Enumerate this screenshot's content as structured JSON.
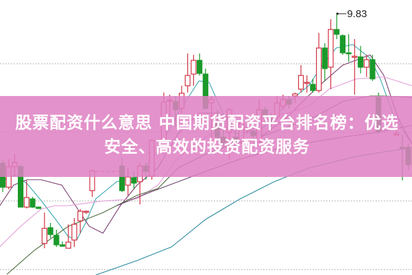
{
  "title": "股票配资什么意思 中国期货配资平台排名榜：优选安全、高效的投资配资服务",
  "colors": {
    "up": "#d0303f",
    "down": "#1a9a2a",
    "banner": "#de82c2",
    "grid": "#999999"
  },
  "chart_data": {
    "type": "candlestick",
    "grid": "horizontal dotted",
    "high_label": "9.83",
    "candles_fields": [
      "day",
      "open",
      "high",
      "low",
      "close"
    ],
    "candles": [
      [
        0,
        8.74,
        8.77,
        8.53,
        8.565
      ],
      [
        1,
        8.565,
        8.77,
        8.55,
        8.715
      ],
      [
        2,
        8.715,
        8.805,
        8.64,
        8.745
      ],
      [
        3,
        8.715,
        8.73,
        8.42,
        8.42
      ],
      [
        4,
        8.42,
        8.615,
        8.41,
        8.49
      ],
      [
        5,
        8.48,
        8.495,
        8.415,
        8.42
      ],
      [
        6,
        8.42,
        8.425,
        8.405,
        8.41
      ],
      [
        7,
        8.155,
        8.38,
        8.12,
        8.265
      ],
      [
        8,
        8.27,
        8.305,
        8.195,
        8.22
      ],
      [
        9,
        8.215,
        8.255,
        8.13,
        8.145
      ],
      [
        10,
        8.145,
        8.17,
        8.13,
        8.135
      ],
      [
        11,
        8.12,
        8.295,
        8.12,
        8.165
      ],
      [
        12,
        8.18,
        8.34,
        8.13,
        8.295
      ],
      [
        13,
        8.32,
        8.405,
        8.23,
        8.39
      ],
      [
        14,
        8.385,
        8.395,
        8.37,
        8.39
      ],
      [
        15,
        8.54,
        8.695,
        8.495,
        8.685
      ],
      [
        20,
        8.72,
        8.78,
        8.53,
        8.54
      ],
      [
        21,
        8.58,
        8.705,
        8.505,
        8.64
      ],
      [
        22,
        8.635,
        8.68,
        8.555,
        8.595
      ],
      [
        23,
        8.605,
        8.745,
        8.44,
        8.72
      ],
      [
        24,
        8.72,
        8.74,
        8.62,
        8.68
      ],
      [
        25,
        8.645,
        8.915,
        8.62,
        8.905
      ],
      [
        27,
        8.88,
        9.255,
        8.855,
        9.185
      ],
      [
        28,
        9.195,
        9.24,
        9.08,
        9.2
      ],
      [
        29,
        9.19,
        9.23,
        9.005,
        9.13
      ],
      [
        30,
        9.14,
        9.305,
        9.105,
        9.25
      ],
      [
        31,
        9.305,
        9.54,
        9.255,
        9.38
      ],
      [
        32,
        9.39,
        9.53,
        9.305,
        9.49
      ],
      [
        33,
        9.49,
        9.54,
        9.38,
        9.395
      ],
      [
        34,
        9.39,
        9.43,
        9.13,
        9.14
      ],
      [
        35,
        9.18,
        9.23,
        8.845,
        9.205
      ],
      [
        36,
        9.04,
        9.13,
        8.905,
        8.93
      ],
      [
        37,
        8.93,
        8.98,
        8.855,
        8.89
      ],
      [
        38,
        8.965,
        9.145,
        8.765,
        9.13
      ],
      [
        39,
        8.93,
        8.98,
        8.855,
        8.89
      ],
      [
        40,
        8.895,
        9.055,
        8.88,
        9.03
      ],
      [
        41,
        8.98,
        9.03,
        8.955,
        8.99
      ],
      [
        42,
        8.97,
        9.005,
        8.905,
        8.94
      ],
      [
        43,
        8.895,
        9.205,
        8.895,
        9.13
      ],
      [
        44,
        9.13,
        9.155,
        9.03,
        9.09
      ],
      [
        45,
        9.055,
        9.105,
        9.005,
        9.03
      ],
      [
        46,
        9.08,
        9.23,
        9.055,
        9.18
      ],
      [
        47,
        9.155,
        9.24,
        9.13,
        9.205
      ],
      [
        48,
        9.205,
        9.23,
        9.14,
        9.17
      ],
      [
        49,
        9.23,
        9.255,
        9.18,
        9.245
      ],
      [
        50,
        9.28,
        9.455,
        9.255,
        9.38
      ],
      [
        51,
        9.325,
        9.38,
        9.255,
        9.33
      ],
      [
        52,
        9.315,
        9.355,
        9.255,
        9.27
      ],
      [
        53,
        9.27,
        9.69,
        9.255,
        9.58
      ],
      [
        54,
        9.58,
        9.615,
        9.34,
        9.43
      ],
      [
        55,
        9.44,
        9.79,
        9.28,
        9.715
      ],
      [
        56,
        9.715,
        9.83,
        9.645,
        9.68
      ],
      [
        57,
        9.67,
        9.68,
        9.53,
        9.545
      ],
      [
        58,
        9.545,
        9.68,
        9.48,
        9.54
      ],
      [
        59,
        9.515,
        9.645,
        9.24,
        9.52
      ],
      [
        60,
        9.515,
        9.595,
        9.395,
        9.44
      ],
      [
        61,
        9.44,
        9.53,
        9.37,
        9.495
      ],
      [
        62,
        9.495,
        9.53,
        9.34,
        9.355
      ],
      [
        63,
        9.22,
        9.255,
        8.955,
        8.97
      ],
      [
        66,
        8.945,
        9.03,
        8.945,
        8.955
      ],
      [
        67,
        8.855,
        8.945,
        8.615,
        8.85
      ],
      [
        68,
        8.855,
        8.88,
        8.69,
        8.73
      ]
    ],
    "reference_line": {
      "price": 8.68,
      "from_day": 15.5,
      "to_day": 19.5,
      "color": "#d0303f"
    },
    "moving_averages": [
      {
        "color": "#3aa6b0",
        "points": [
          [
            -0.5,
            8.605
          ],
          [
            2.1,
            8.655
          ],
          [
            4.1,
            8.59
          ],
          [
            6.4,
            8.47
          ],
          [
            8.7,
            8.34
          ],
          [
            11,
            8.205
          ],
          [
            12.4,
            8.18
          ],
          [
            13.9,
            8.305
          ],
          [
            15.6,
            8.48
          ],
          [
            19.1,
            8.605
          ],
          [
            22.5,
            8.64
          ],
          [
            26,
            8.83
          ],
          [
            29.4,
            9.105
          ],
          [
            32.9,
            9.34
          ],
          [
            34.6,
            9.33
          ],
          [
            36.9,
            9.105
          ],
          [
            39.2,
            8.955
          ],
          [
            43.2,
            8.98
          ],
          [
            47.8,
            9.18
          ],
          [
            51.3,
            9.305
          ],
          [
            53.6,
            9.455
          ],
          [
            55.9,
            9.58
          ],
          [
            58.7,
            9.605
          ],
          [
            61.6,
            9.505
          ],
          [
            63.3,
            9.355
          ],
          [
            65.6,
            9.08
          ],
          [
            68.6,
            8.88
          ]
        ]
      },
      {
        "color": "#7a3b6e",
        "points": [
          [
            -0.5,
            8.43
          ],
          [
            1.8,
            8.58
          ],
          [
            4.1,
            8.62
          ],
          [
            6.4,
            8.62
          ],
          [
            9.9,
            8.58
          ],
          [
            12.2,
            8.43
          ],
          [
            14.5,
            8.28
          ],
          [
            16.8,
            8.23
          ],
          [
            19.7,
            8.43
          ],
          [
            22.5,
            8.58
          ],
          [
            26,
            8.705
          ],
          [
            29.4,
            8.955
          ],
          [
            32.9,
            9.105
          ],
          [
            36.3,
            9.105
          ],
          [
            39.8,
            9.03
          ],
          [
            43.2,
            8.93
          ],
          [
            47.8,
            9.08
          ],
          [
            52.4,
            9.28
          ],
          [
            57,
            9.455
          ],
          [
            61.6,
            9.53
          ],
          [
            63.9,
            9.38
          ],
          [
            66.2,
            9.08
          ],
          [
            68.6,
            8.88
          ]
        ]
      },
      {
        "color": "#e59ad8",
        "points": [
          [
            -0.5,
            8.13
          ],
          [
            3,
            8.28
          ],
          [
            6.4,
            8.405
          ],
          [
            8.7,
            8.43
          ],
          [
            11,
            8.43
          ],
          [
            16.8,
            8.465
          ],
          [
            22.5,
            8.48
          ],
          [
            26,
            8.58
          ],
          [
            29.4,
            8.78
          ],
          [
            34,
            8.93
          ],
          [
            38.6,
            9.03
          ],
          [
            43.2,
            9.07
          ],
          [
            47.8,
            9.105
          ],
          [
            51.3,
            9.155
          ],
          [
            54.7,
            9.28
          ],
          [
            59.3,
            9.355
          ],
          [
            63.9,
            9.37
          ],
          [
            68.6,
            9.305
          ]
        ]
      },
      {
        "color": "#4a6a3a",
        "points": [
          [
            0.7,
            7.93
          ],
          [
            5.3,
            8.105
          ],
          [
            11,
            8.28
          ],
          [
            16.8,
            8.38
          ],
          [
            22.5,
            8.505
          ],
          [
            26,
            8.555
          ],
          [
            29.4,
            8.705
          ],
          [
            34,
            8.805
          ],
          [
            38.6,
            8.88
          ],
          [
            43.2,
            8.93
          ],
          [
            47.8,
            9.005
          ],
          [
            52.4,
            9.08
          ],
          [
            57,
            9.19
          ],
          [
            61.6,
            9.23
          ],
          [
            63.9,
            9.23
          ],
          [
            68.6,
            9.22
          ]
        ]
      },
      {
        "color": "#6b3f6b",
        "points": [
          [
            19.1,
            8.43
          ],
          [
            24.8,
            8.53
          ],
          [
            29.4,
            8.605
          ],
          [
            34,
            8.68
          ],
          [
            39.8,
            8.77
          ],
          [
            45.5,
            8.84
          ],
          [
            51.3,
            8.89
          ],
          [
            57,
            8.93
          ],
          [
            62.8,
            8.965
          ],
          [
            68.6,
            9.015
          ]
        ]
      },
      {
        "color": "#2a8aa0",
        "points": [
          [
            15.6,
            7.925
          ],
          [
            22.5,
            8.03
          ],
          [
            28.3,
            8.13
          ],
          [
            34,
            8.33
          ],
          [
            39.8,
            8.48
          ],
          [
            45.5,
            8.605
          ],
          [
            51.3,
            8.705
          ],
          [
            59.3,
            8.79
          ],
          [
            68.6,
            8.855
          ]
        ]
      }
    ],
    "grid_prices": [
      9.465,
      8.965,
      8.465,
      7.965
    ]
  }
}
